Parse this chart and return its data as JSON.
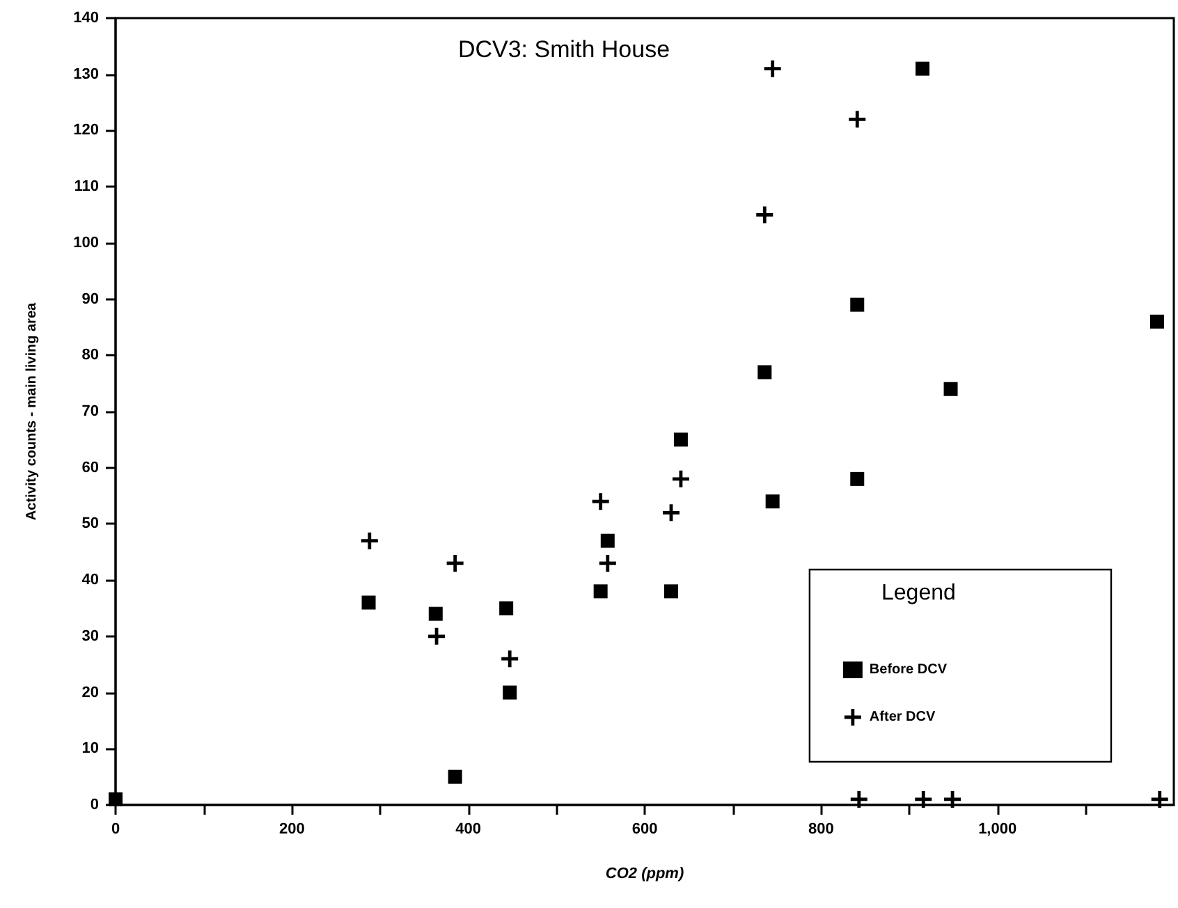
{
  "chart_data": {
    "type": "scatter",
    "title": "DCV3: Smith House",
    "xlabel": "CO2 (ppm)",
    "ylabel": "Activity counts - main living area",
    "legend_title": "Legend",
    "legend": "bottom right",
    "grid": false,
    "xlim": [
      0,
      1200
    ],
    "xticks": [
      0,
      {
        "value": 100,
        "label": null
      },
      200,
      {
        "value": 300,
        "label": null
      },
      400,
      {
        "value": 500,
        "label": null
      },
      600,
      {
        "value": 700,
        "label": null
      },
      800,
      {
        "value": 900,
        "label": null
      },
      {
        "value": 1000,
        "label": "1,000"
      },
      {
        "value": 1100,
        "label": null
      }
    ],
    "ylim": [
      0,
      140
    ],
    "yticks": [
      0,
      10,
      20,
      30,
      40,
      50,
      60,
      70,
      80,
      90,
      100,
      110,
      120,
      130,
      140
    ],
    "series": [
      {
        "name": "Before DCV",
        "color": "#000000",
        "marker": "square",
        "x": [
          0,
          287,
          363,
          385,
          443,
          447,
          550,
          558,
          630,
          641,
          736,
          745,
          841,
          841,
          915,
          947,
          1181
        ],
        "values": [
          1,
          36,
          34,
          5,
          35,
          20,
          38,
          47,
          38,
          65,
          77,
          54,
          58,
          89,
          131,
          74,
          86
        ]
      },
      {
        "name": "After DCV",
        "color": "#000000",
        "marker": "cross",
        "x": [
          288,
          364,
          385,
          447,
          550,
          558,
          630,
          641,
          736,
          745,
          841,
          843,
          916,
          949,
          1184
        ],
        "values": [
          47,
          30,
          43,
          26,
          54,
          43,
          52,
          58,
          105,
          131,
          122,
          1,
          1,
          1,
          1
        ]
      }
    ]
  }
}
